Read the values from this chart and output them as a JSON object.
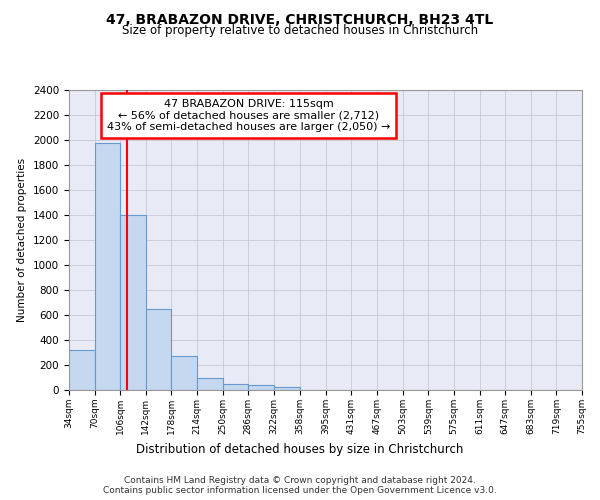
{
  "title": "47, BRABAZON DRIVE, CHRISTCHURCH, BH23 4TL",
  "subtitle": "Size of property relative to detached houses in Christchurch",
  "xlabel": "Distribution of detached houses by size in Christchurch",
  "ylabel": "Number of detached properties",
  "footnote1": "Contains HM Land Registry data © Crown copyright and database right 2024.",
  "footnote2": "Contains public sector information licensed under the Open Government Licence v3.0.",
  "annotation_line1": "47 BRABAZON DRIVE: 115sqm",
  "annotation_line2": "← 56% of detached houses are smaller (2,712)",
  "annotation_line3": "43% of semi-detached houses are larger (2,050) →",
  "bar_edges": [
    34,
    70,
    106,
    142,
    178,
    214,
    250,
    286,
    322,
    358,
    395,
    431,
    467,
    503,
    539,
    575,
    611,
    647,
    683,
    719,
    755
  ],
  "bar_heights": [
    320,
    1980,
    1400,
    650,
    270,
    100,
    50,
    40,
    25,
    0,
    0,
    0,
    0,
    0,
    0,
    0,
    0,
    0,
    0,
    0
  ],
  "bar_color": "#c5d8f0",
  "bar_edge_color": "#6699cc",
  "red_line_x": 115,
  "ylim": [
    0,
    2400
  ],
  "xlim": [
    34,
    755
  ],
  "yticks": [
    0,
    200,
    400,
    600,
    800,
    1000,
    1200,
    1400,
    1600,
    1800,
    2000,
    2200,
    2400
  ],
  "grid_color": "#c8c8d8",
  "bg_color": "#ffffff",
  "plot_bg_color": "#e8eaf6"
}
